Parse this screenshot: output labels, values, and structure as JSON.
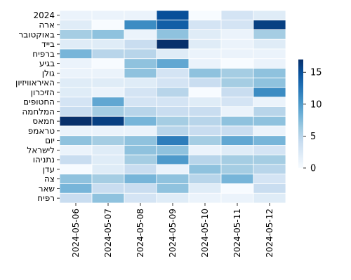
{
  "chart_data": {
    "type": "heatmap",
    "title": "",
    "xlabel": "",
    "ylabel": "",
    "x": [
      "2024-05-06",
      "2024-05-07",
      "2024-05-08",
      "2024-05-09",
      "2024-05-10",
      "2024-05-11",
      "2024-05-12"
    ],
    "y": [
      "2024",
      "ארה",
      "באוקטובר",
      "בייד",
      "ברפיח",
      "בגיע",
      "גולן",
      "האיראוויזיון",
      "הזיכרון",
      "החטופים",
      "המלחמה",
      "חמאס",
      "טראמפ",
      "יום",
      "לישראל",
      "נתניהו",
      "עדן",
      "צה",
      "שאר",
      "רפיח"
    ],
    "values": [
      [
        1,
        1,
        1,
        15,
        0,
        3,
        2
      ],
      [
        2,
        0,
        11,
        14,
        3,
        3,
        16
      ],
      [
        6,
        7,
        1,
        7,
        2,
        1,
        6
      ],
      [
        2,
        2,
        4,
        17,
        2,
        1,
        2
      ],
      [
        8,
        5,
        5,
        2,
        1,
        1,
        1
      ],
      [
        1,
        0,
        7,
        9,
        1,
        0,
        1
      ],
      [
        1,
        1,
        7,
        3,
        7,
        6,
        7
      ],
      [
        2,
        2,
        2,
        3,
        4,
        6,
        7
      ],
      [
        2,
        1,
        3,
        5,
        0,
        4,
        11
      ],
      [
        3,
        9,
        3,
        3,
        2,
        3,
        1
      ],
      [
        4,
        6,
        5,
        4,
        4,
        1,
        5
      ],
      [
        17,
        16,
        8,
        6,
        5,
        7,
        7
      ],
      [
        1,
        1,
        1,
        5,
        4,
        4,
        1
      ],
      [
        7,
        6,
        7,
        12,
        6,
        9,
        8
      ],
      [
        1,
        2,
        7,
        7,
        1,
        2,
        3
      ],
      [
        4,
        2,
        6,
        10,
        5,
        6,
        6
      ],
      [
        0,
        2,
        4,
        1,
        7,
        6,
        5
      ],
      [
        7,
        6,
        8,
        7,
        5,
        8,
        3
      ],
      [
        8,
        4,
        4,
        7,
        2,
        0,
        4
      ],
      [
        4,
        7,
        3,
        2,
        1,
        1,
        2
      ]
    ],
    "vmin": 0,
    "vmax": 17,
    "colorbar_ticks": [
      0,
      5,
      10,
      15
    ],
    "colormap": "Blues",
    "colormap_low": "#f7fbff",
    "colormap_high": "#08306b",
    "grid_line_color": "#ffffff"
  }
}
